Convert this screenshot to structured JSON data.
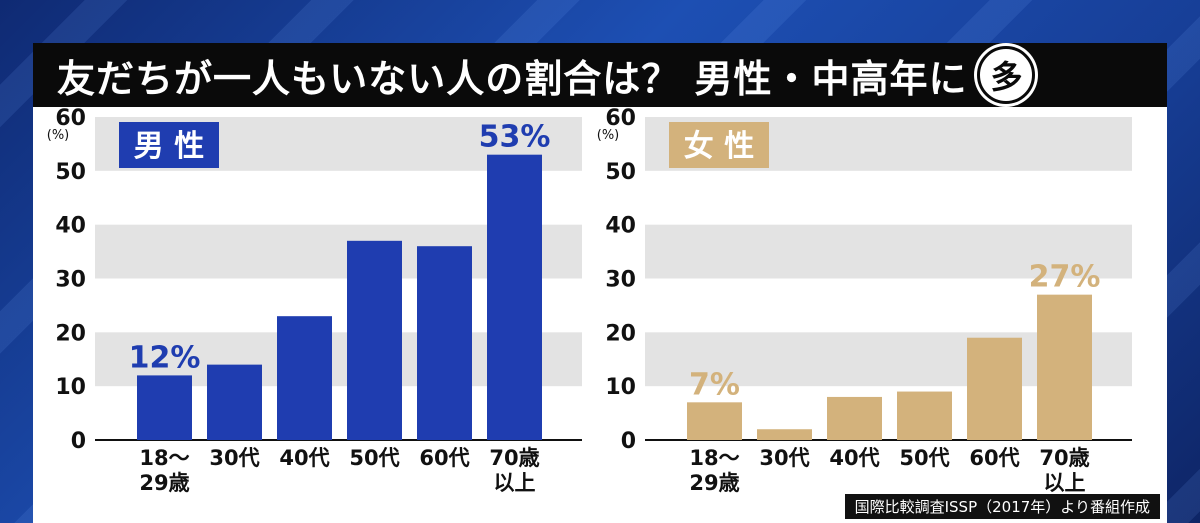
{
  "header": {
    "title": "友だちが一人もいない人の割合は？ 男性・中高年に",
    "badge": "多"
  },
  "source": "国際比較調査ISSP（2017年）より番組作成",
  "colors": {
    "male": "#1f3db0",
    "female": "#d3b27c",
    "band": "#e3e3e3"
  },
  "chart_data": [
    {
      "type": "bar",
      "title": "男 性",
      "ylabel": "(%)",
      "ylim": [
        0,
        60
      ],
      "yticks": [
        "0",
        "10",
        "20",
        "30",
        "40",
        "50",
        "60"
      ],
      "categories": [
        "18〜\n29歳",
        "30代",
        "40代",
        "50代",
        "60代",
        "70歳\n以上"
      ],
      "values": [
        12,
        14,
        23,
        37,
        36,
        53
      ],
      "data_labels": [
        "12%",
        "",
        "",
        "",
        "",
        "53%"
      ]
    },
    {
      "type": "bar",
      "title": "女 性",
      "ylabel": "(%)",
      "ylim": [
        0,
        60
      ],
      "yticks": [
        "0",
        "10",
        "20",
        "30",
        "40",
        "50",
        "60"
      ],
      "categories": [
        "18〜\n29歳",
        "30代",
        "40代",
        "50代",
        "60代",
        "70歳\n以上"
      ],
      "values": [
        7,
        2,
        8,
        9,
        19,
        27
      ],
      "data_labels": [
        "7%",
        "",
        "",
        "",
        "",
        "27%"
      ]
    }
  ]
}
